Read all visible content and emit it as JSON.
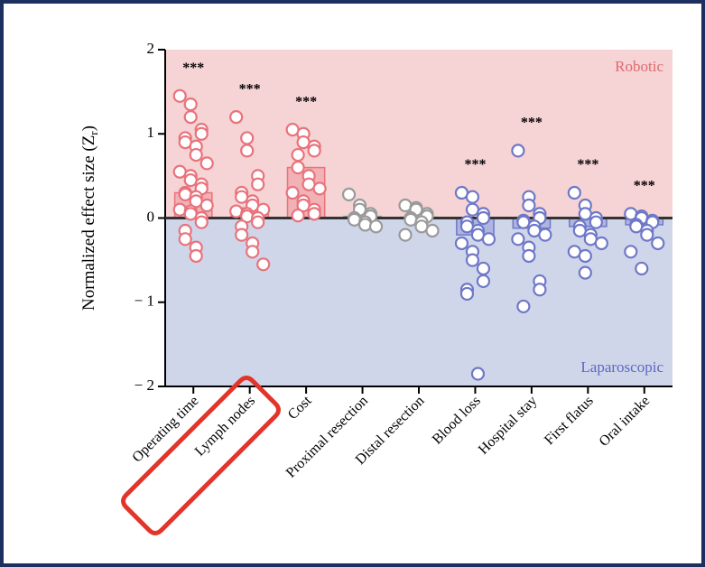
{
  "chart_data": {
    "type": "beeswarm",
    "y_label": {
      "text": "Normalized effect size (Z",
      "subscript": "r",
      "suffix": ")"
    },
    "upper_region_label": "Robotic",
    "lower_region_label": "Laparoscopic",
    "upper_color": "#f6d3d4",
    "lower_color": "#cfd6ea",
    "ylim": [
      -2,
      2
    ],
    "yticks": [
      {
        "value": -2,
        "label": "− 2"
      },
      {
        "value": -1,
        "label": "− 1"
      },
      0,
      1,
      2
    ],
    "categories": [
      "Operating time",
      "Lymph nodes",
      "Cost",
      "Proximal resection",
      "Distal resection",
      "Blood loss",
      "Hospital stay",
      "First flatus",
      "Oral intake"
    ],
    "colors": [
      "#e8737c",
      "#e8737c",
      "#e8737c",
      "#9a9a9a",
      "#9a9a9a",
      "#6f78c8",
      "#6f78c8",
      "#6f78c8",
      "#6f78c8"
    ],
    "significance": [
      "***",
      "***",
      "***",
      null,
      null,
      "***",
      "***",
      "***",
      "***"
    ],
    "means": [
      0.3,
      0.12,
      0.6,
      0.02,
      0.01,
      -0.2,
      -0.12,
      -0.1,
      -0.08
    ],
    "points": [
      [
        1.45,
        1.35,
        1.2,
        1.05,
        1.0,
        0.95,
        0.9,
        0.85,
        0.75,
        0.65,
        0.55,
        0.5,
        0.45,
        0.4,
        0.35,
        0.3,
        0.28,
        0.25,
        0.2,
        0.15,
        0.1,
        0.08,
        0.05,
        0.0,
        -0.05,
        -0.15,
        -0.25,
        -0.35,
        -0.45
      ],
      [
        1.2,
        0.95,
        0.8,
        0.5,
        0.4,
        0.3,
        0.25,
        0.2,
        0.15,
        0.1,
        0.08,
        0.05,
        0.02,
        0.0,
        -0.05,
        -0.1,
        -0.2,
        -0.3,
        -0.4,
        -0.55
      ],
      [
        1.05,
        1.0,
        0.9,
        0.85,
        0.8,
        0.75,
        0.6,
        0.5,
        0.4,
        0.35,
        0.3,
        0.2,
        0.15,
        0.1,
        0.05,
        0.03
      ],
      [
        0.28,
        0.15,
        0.1,
        0.05,
        0.02,
        0.0,
        -0.02,
        -0.05,
        -0.08,
        -0.1
      ],
      [
        0.15,
        0.12,
        0.1,
        0.05,
        0.02,
        0.0,
        -0.02,
        -0.05,
        -0.1,
        -0.15,
        -0.2
      ],
      [
        0.3,
        0.25,
        0.1,
        0.05,
        0.0,
        -0.05,
        -0.1,
        -0.15,
        -0.2,
        -0.25,
        -0.3,
        -0.4,
        -0.5,
        -0.6,
        -0.75,
        -0.85,
        -0.9,
        -1.85
      ],
      [
        0.8,
        0.25,
        0.15,
        0.05,
        0.0,
        -0.03,
        -0.05,
        -0.1,
        -0.15,
        -0.2,
        -0.25,
        -0.35,
        -0.45,
        -0.75,
        -0.85,
        -1.05
      ],
      [
        0.3,
        0.15,
        0.05,
        0.0,
        -0.05,
        -0.1,
        -0.15,
        -0.2,
        -0.25,
        -0.3,
        -0.4,
        -0.45,
        -0.65
      ],
      [
        0.05,
        0.02,
        0.0,
        -0.03,
        -0.05,
        -0.08,
        -0.1,
        -0.15,
        -0.2,
        -0.3,
        -0.4,
        -0.6
      ]
    ]
  }
}
